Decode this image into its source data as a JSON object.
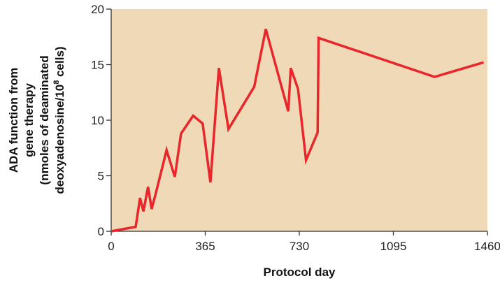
{
  "chart_data": {
    "type": "line",
    "xlabel": "Protocol day",
    "ylabel_lines": [
      "ADA function from",
      "gene therapy",
      "(nmoles of deaminated",
      "deoxyadenosine/10",
      "8",
      " cells)"
    ],
    "xlim": [
      0,
      1460
    ],
    "ylim": [
      0,
      20
    ],
    "xticks": [
      0,
      365,
      730,
      1095,
      1460
    ],
    "yticks": [
      0,
      5,
      10,
      15,
      20
    ],
    "grid": false,
    "colors": {
      "plot_background": "#efd9b6",
      "line": "#e8262b",
      "axis": "#333333"
    },
    "series": [
      {
        "x": [
          0,
          95,
          112,
          125,
          143,
          157,
          175,
          215,
          247,
          271,
          318,
          355,
          385,
          418,
          455,
          555,
          600,
          687,
          697,
          725,
          756,
          801,
          805,
          1255,
          1445
        ],
        "values": [
          0,
          0.4,
          3.0,
          1.8,
          4.0,
          2.0,
          3.6,
          7.3,
          4.9,
          8.8,
          10.4,
          9.7,
          4.4,
          14.7,
          9.2,
          13.0,
          18.2,
          10.8,
          14.7,
          12.8,
          6.4,
          8.9,
          17.4,
          13.9,
          15.2
        ]
      }
    ]
  }
}
